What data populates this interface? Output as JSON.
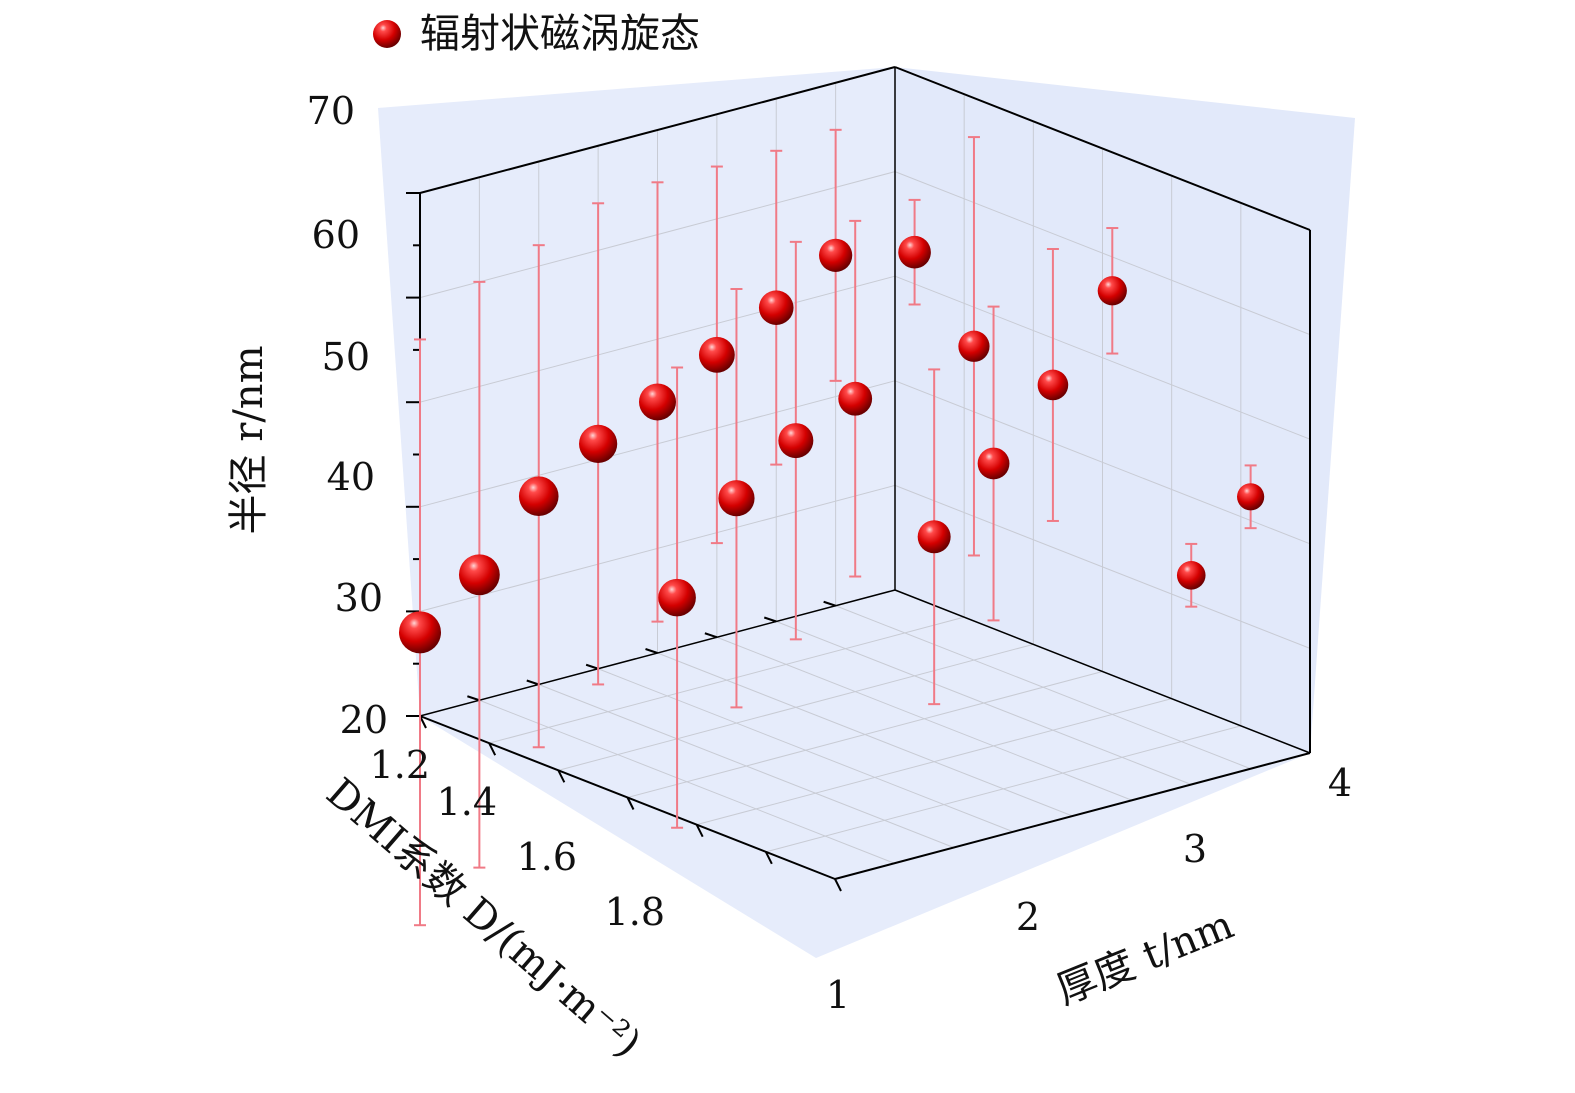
{
  "chart_data": {
    "type": "scatter",
    "plot_style": "3d-scatter-with-error-bars",
    "legend": {
      "label": "辐射状磁涡旋态",
      "placement": "top-left",
      "marker_color": "#e00000"
    },
    "axes": {
      "z": {
        "label": "半径 r/nm",
        "lim": [
          20,
          70
        ],
        "ticks": [
          "20",
          "30",
          "40",
          "50",
          "60",
          "70"
        ]
      },
      "d": {
        "label": "DMI系数 D/(mJ·m⁻²)",
        "lim": [
          1.1,
          1.9
        ],
        "ticks": [
          "1.2",
          "1.4",
          "1.6",
          "1.8"
        ]
      },
      "t": {
        "label": "厚度 t/nm",
        "lim": [
          1,
          4
        ],
        "ticks": [
          "1",
          "2",
          "3",
          "4"
        ]
      }
    },
    "grid": true,
    "colors": {
      "pane": "#e6ecfb",
      "marker": "#e00000",
      "error_bar": "#f07a86",
      "axis": "#000000"
    },
    "points": [
      {
        "t": 1.0,
        "D": 1.2,
        "r": 53.5,
        "err": 12
      },
      {
        "t": 1.0,
        "D": 1.3,
        "r": 50.0,
        "err": 15
      },
      {
        "t": 1.0,
        "D": 1.4,
        "r": 47.0,
        "err": 18
      },
      {
        "t": 1.0,
        "D": 1.5,
        "r": 44.0,
        "err": 21
      },
      {
        "t": 1.0,
        "D": 1.6,
        "r": 41.5,
        "err": 23
      },
      {
        "t": 1.0,
        "D": 1.7,
        "r": 38.0,
        "err": 24
      },
      {
        "t": 1.0,
        "D": 1.8,
        "r": 32.0,
        "err": 28
      },
      {
        "t": 1.0,
        "D": 1.9,
        "r": 28.0,
        "err": 28
      },
      {
        "t": 2.0,
        "D": 1.2,
        "r": 50.0,
        "err": 20
      },
      {
        "t": 2.0,
        "D": 1.3,
        "r": 60.5,
        "err": 5
      },
      {
        "t": 2.0,
        "D": 1.4,
        "r": 48.0,
        "err": 17
      },
      {
        "t": 2.0,
        "D": 1.5,
        "r": 45.5,
        "err": 19
      },
      {
        "t": 2.0,
        "D": 1.6,
        "r": 41.5,
        "err": 20
      },
      {
        "t": 2.0,
        "D": 1.7,
        "r": 33.5,
        "err": 22
      },
      {
        "t": 3.0,
        "D": 1.2,
        "r": 60.5,
        "err": 6
      },
      {
        "t": 3.0,
        "D": 1.3,
        "r": 53.0,
        "err": 13
      },
      {
        "t": 3.0,
        "D": 1.4,
        "r": 47.0,
        "err": 15
      },
      {
        "t": 3.0,
        "D": 1.5,
        "r": 41.5,
        "err": 16
      },
      {
        "t": 4.0,
        "D": 1.2,
        "r": 46.0,
        "err": 3
      },
      {
        "t": 4.0,
        "D": 1.3,
        "r": 40.0,
        "err": 3
      }
    ]
  }
}
